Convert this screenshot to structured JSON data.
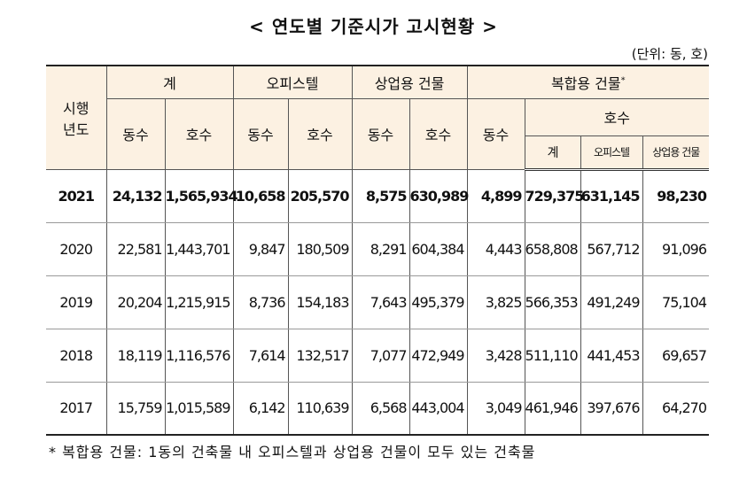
{
  "header": {
    "title": "< 연도별 기준시가 고시현황 >",
    "unit": "(단위: 동, 호)"
  },
  "table": {
    "year_label": [
      "시행",
      "년도"
    ],
    "groups": {
      "total": "계",
      "officetel": "오피스텔",
      "commercial": "상업용 건물",
      "mixed": "복합용 건물",
      "mixed_mark": "*"
    },
    "sub": {
      "buildings": "동수",
      "units": "호수",
      "units_total": "계",
      "units_officetel": "오피스텔",
      "units_commercial": "상업용 건물"
    },
    "rows": [
      [
        "2021",
        "24,132",
        "1,565,934",
        "10,658",
        "205,570",
        "8,575",
        "630,989",
        "4,899",
        "729,375",
        "631,145",
        "98,230"
      ],
      [
        "2020",
        "22,581",
        "1,443,701",
        "9,847",
        "180,509",
        "8,291",
        "604,384",
        "4,443",
        "658,808",
        "567,712",
        "91,096"
      ],
      [
        "2019",
        "20,204",
        "1,215,915",
        "8,736",
        "154,183",
        "7,643",
        "495,379",
        "3,825",
        "566,353",
        "491,249",
        "75,104"
      ],
      [
        "2018",
        "18,119",
        "1,116,576",
        "7,614",
        "132,517",
        "7,077",
        "472,949",
        "3,428",
        "511,110",
        "441,453",
        "69,657"
      ],
      [
        "2017",
        "15,759",
        "1,015,589",
        "6,142",
        "110,639",
        "6,568",
        "443,004",
        "3,049",
        "461,946",
        "397,676",
        "64,270"
      ]
    ]
  },
  "footnote": "* 복합용 건물: 1동의 건축물 내 오피스텔과 상업용 건물이 모두 있는 건축물"
}
